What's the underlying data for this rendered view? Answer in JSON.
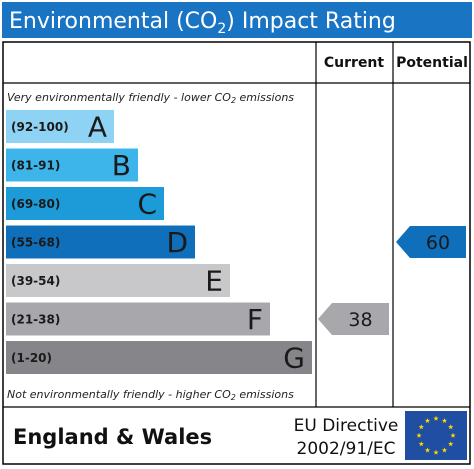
{
  "title": "Environmental (CO",
  "title_sub": "2",
  "title_tail": ") Impact Rating",
  "header_color": "#1a74c4",
  "columns": {
    "current": "Current",
    "potential": "Potential"
  },
  "top_note": "Very environmentally friendly - lower CO",
  "top_note_sub": "2",
  "top_note_tail": " emissions",
  "bottom_note": "Not environmentally friendly - higher CO",
  "bottom_note_sub": "2",
  "bottom_note_tail": " emissions",
  "footer": {
    "region": "England & Wales",
    "directive_line1": "EU Directive",
    "directive_line2": "2002/91/EC",
    "flag_color": "#1f4ea3",
    "star_color": "#ffd800"
  },
  "chart_data": {
    "type": "bar",
    "bands": [
      {
        "range": "(92-100)",
        "letter": "A",
        "color": "#8fd3f4"
      },
      {
        "range": "(81-91)",
        "letter": "B",
        "color": "#3db4ea"
      },
      {
        "range": "(69-80)",
        "letter": "C",
        "color": "#1d9bd8"
      },
      {
        "range": "(55-68)",
        "letter": "D",
        "color": "#0f6fba"
      },
      {
        "range": "(39-54)",
        "letter": "E",
        "color": "#c8c8cb"
      },
      {
        "range": "(21-38)",
        "letter": "F",
        "color": "#a8a8ac"
      },
      {
        "range": "(1-20)",
        "letter": "G",
        "color": "#86868a"
      }
    ],
    "current": {
      "value": 38,
      "label": "38",
      "band": "F",
      "color": "#a8a8ac"
    },
    "potential": {
      "value": 60,
      "label": "60",
      "band": "D",
      "color": "#0f6fba"
    }
  }
}
